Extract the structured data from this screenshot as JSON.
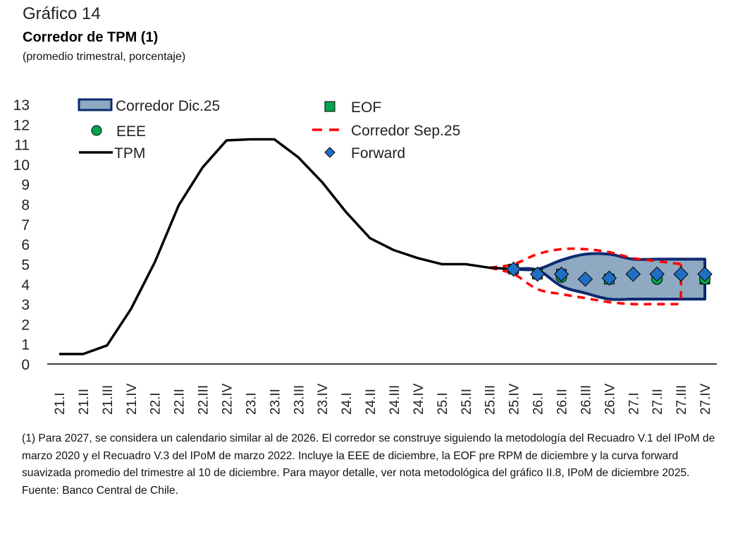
{
  "header": {
    "figure_number": "Gráfico 14",
    "title": "Corredor de TPM (1)",
    "subtitle": "(promedio trimestral, porcentaje)"
  },
  "chart_data": {
    "type": "line",
    "title": "Corredor de TPM (1)",
    "subtitle": "(promedio trimestral, porcentaje)",
    "xlabel": "",
    "ylabel": "",
    "ylim": [
      0,
      13
    ],
    "yticks": [
      "0",
      "1",
      "2",
      "3",
      "4",
      "5",
      "6",
      "7",
      "8",
      "9",
      "10",
      "11",
      "12",
      "13"
    ],
    "grid": false,
    "legend_position": "top",
    "categories": [
      "21.I",
      "21.II",
      "21.III",
      "21.IV",
      "22.I",
      "22.II",
      "22.III",
      "22.IV",
      "23.I",
      "23.II",
      "23.III",
      "23.IV",
      "24.I",
      "24.II",
      "24.III",
      "24.IV",
      "25.I",
      "25.II",
      "25.III",
      "25.IV",
      "26.I",
      "26.II",
      "26.III",
      "26.IV",
      "27.I",
      "27.II",
      "27.III",
      "27.IV"
    ],
    "legend": [
      {
        "key": "corredor_dic",
        "label": "Corredor Dic.25",
        "marker": "band"
      },
      {
        "key": "eof",
        "label": "EOF",
        "marker": "square"
      },
      {
        "key": "eee",
        "label": "EEE",
        "marker": "circle"
      },
      {
        "key": "corredor_sep",
        "label": "Corredor Sep.25",
        "marker": "dashed-line"
      },
      {
        "key": "tpm",
        "label": "TPM",
        "marker": "line"
      },
      {
        "key": "forward",
        "label": "Forward",
        "marker": "diamond"
      }
    ],
    "series": [
      {
        "name": "TPM",
        "key": "tpm",
        "color": "#000000",
        "values": [
          0.5,
          0.5,
          0.93,
          2.75,
          5.1,
          7.95,
          9.85,
          11.2,
          11.25,
          11.25,
          10.35,
          9.1,
          7.6,
          6.3,
          5.7,
          5.3,
          5.0,
          5.0,
          4.82,
          4.75,
          null,
          null,
          null,
          null,
          null,
          null,
          null,
          null
        ]
      },
      {
        "name": "Corredor Dic.25 (superior)",
        "key": "dic_upper",
        "color": "#0B2A6F",
        "values": [
          null,
          null,
          null,
          null,
          null,
          null,
          null,
          null,
          null,
          null,
          null,
          null,
          null,
          null,
          null,
          null,
          null,
          null,
          null,
          4.75,
          4.75,
          5.2,
          5.5,
          5.5,
          5.25,
          5.25,
          5.25,
          5.25
        ]
      },
      {
        "name": "Corredor Dic.25 (inferior)",
        "key": "dic_lower",
        "color": "#0B2A6F",
        "values": [
          null,
          null,
          null,
          null,
          null,
          null,
          null,
          null,
          null,
          null,
          null,
          null,
          null,
          null,
          null,
          null,
          null,
          null,
          null,
          4.75,
          4.7,
          3.9,
          3.55,
          3.25,
          3.25,
          3.25,
          3.25,
          3.25
        ]
      },
      {
        "name": "Corredor Sep.25 (superior)",
        "key": "sep_upper",
        "color": "#FF0000",
        "values": [
          null,
          null,
          null,
          null,
          null,
          null,
          null,
          null,
          null,
          null,
          null,
          null,
          null,
          null,
          null,
          null,
          null,
          null,
          4.82,
          5.0,
          5.5,
          5.75,
          5.75,
          5.6,
          5.3,
          5.15,
          5.0,
          null
        ]
      },
      {
        "name": "Corredor Sep.25 (inferior)",
        "key": "sep_lower",
        "color": "#FF0000",
        "values": [
          null,
          null,
          null,
          null,
          null,
          null,
          null,
          null,
          null,
          null,
          null,
          null,
          null,
          null,
          null,
          null,
          null,
          null,
          4.82,
          4.5,
          3.75,
          3.5,
          3.3,
          3.1,
          3.0,
          3.0,
          3.0,
          null
        ]
      },
      {
        "name": "EOF",
        "key": "eof",
        "color": "#00A650",
        "values": [
          null,
          null,
          null,
          null,
          null,
          null,
          null,
          null,
          null,
          null,
          null,
          null,
          null,
          null,
          null,
          null,
          null,
          null,
          null,
          4.75,
          4.5,
          4.5,
          null,
          4.25,
          null,
          null,
          null,
          4.25
        ]
      },
      {
        "name": "EEE",
        "key": "eee",
        "color": "#00A650",
        "values": [
          null,
          null,
          null,
          null,
          null,
          null,
          null,
          null,
          null,
          null,
          null,
          null,
          null,
          null,
          null,
          null,
          null,
          null,
          null,
          null,
          null,
          4.35,
          null,
          null,
          null,
          4.25,
          null,
          4.25
        ]
      },
      {
        "name": "Forward",
        "key": "forward",
        "color": "#1F6FC5",
        "values": [
          null,
          null,
          null,
          null,
          null,
          null,
          null,
          null,
          null,
          null,
          null,
          null,
          null,
          null,
          null,
          null,
          null,
          null,
          null,
          4.75,
          4.5,
          4.5,
          4.25,
          4.3,
          4.5,
          4.5,
          4.5,
          4.5
        ]
      }
    ]
  },
  "notes": {
    "footnote": "(1) Para 2027, se considera un calendario similar al de 2026. El corredor se construye siguiendo la metodología del Recuadro V.1 del IPoM de marzo 2020 y el Recuadro V.3 del IPoM de marzo 2022. Incluye la EEE de diciembre, la EOF pre RPM de diciembre y la curva forward suavizada promedio del trimestre al 10 de diciembre. Para mayor detalle, ver nota metodológica del gráfico II.8, IPoM de diciembre 2025.",
    "source": "Fuente: Banco Central de Chile."
  }
}
